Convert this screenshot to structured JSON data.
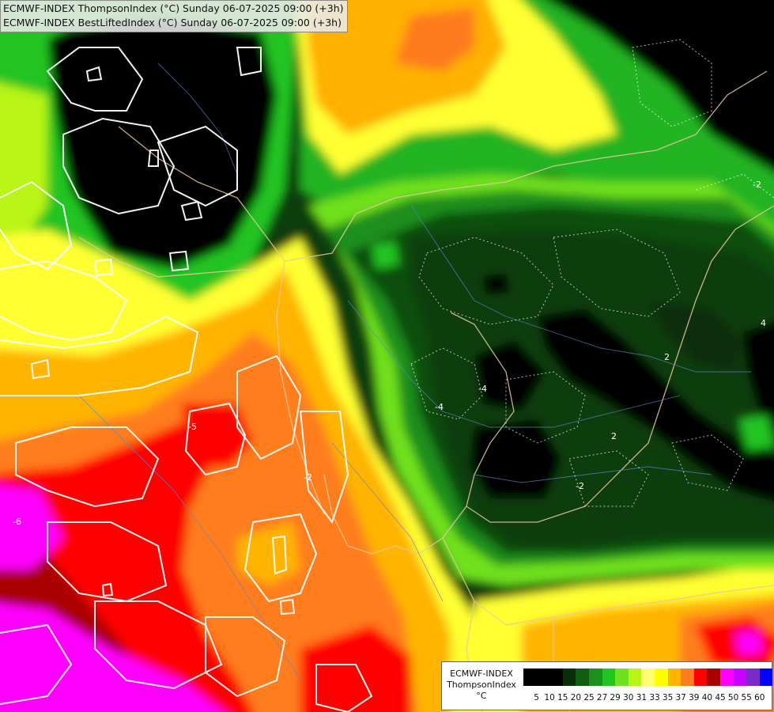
{
  "titles": {
    "line1": "ECMWF-INDEX ThompsonIndex (°C) Sunday 06-07-2025 09:00 (+3h)",
    "line2": "ECMWF-INDEX BestLiftedIndex (°C) Sunday 06-07-2025 09:00 (+3h)"
  },
  "legend": {
    "line1": "ECMWF-INDEX",
    "line2": "ThompsonIndex",
    "line3": "°C",
    "ticks": [
      "5",
      "10",
      "15",
      "20",
      "25",
      "27",
      "29",
      "30",
      "31",
      "33",
      "35",
      "37",
      "39",
      "40",
      "45",
      "50",
      "55",
      "60"
    ],
    "colors": [
      "#000000",
      "#000000",
      "#000000",
      "#0a2d0a",
      "#115d11",
      "#1c8f1c",
      "#22c422",
      "#6fe11e",
      "#b9f514",
      "#ffff70",
      "#ffff00",
      "#ffb400",
      "#ff7d1e",
      "#ff0000",
      "#aa0000",
      "#ff00ff",
      "#c800ff",
      "#7d28c8",
      "#0000ff"
    ]
  },
  "contour_labels": [
    "-5",
    "-6",
    "-2",
    "-4",
    "-4",
    "-2",
    "-2",
    "2",
    "2",
    "4"
  ]
}
